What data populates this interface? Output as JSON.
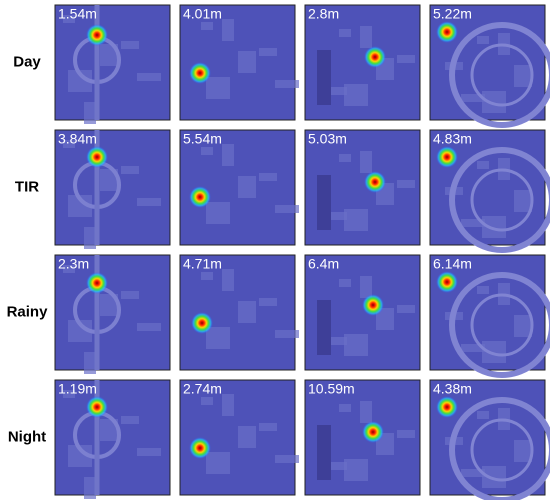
{
  "rows": [
    {
      "label": "Day",
      "cells": [
        "1.54m",
        "4.01m",
        "2.8m",
        "5.22m"
      ]
    },
    {
      "label": "TIR",
      "cells": [
        "3.84m",
        "5.54m",
        "5.03m",
        "4.83m"
      ]
    },
    {
      "label": "Rainy",
      "cells": [
        "2.3m",
        "4.71m",
        "6.4m",
        "6.14m"
      ]
    },
    {
      "label": "Night",
      "cells": [
        "1.19m",
        "2.74m",
        "10.59m",
        "4.38m"
      ]
    }
  ]
}
